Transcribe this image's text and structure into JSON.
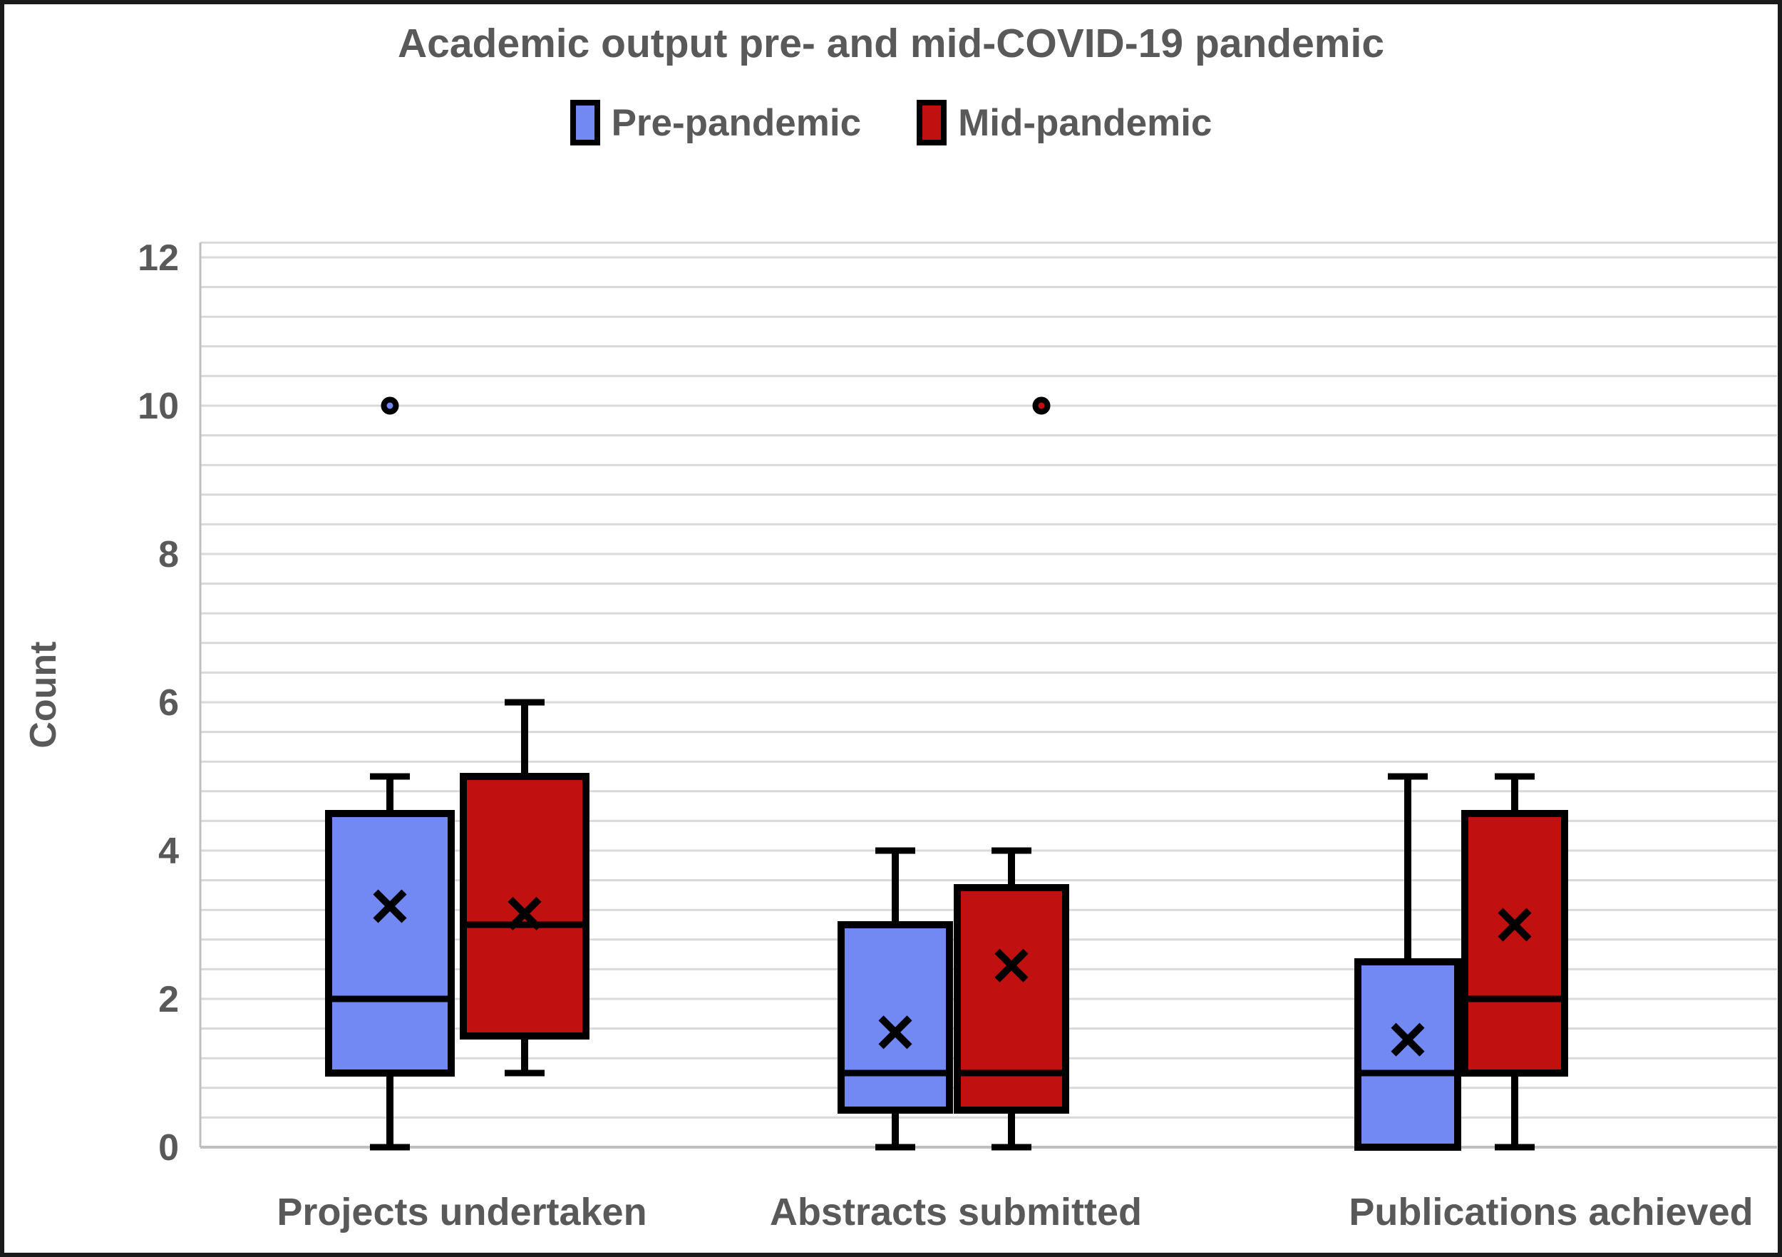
{
  "title": "Academic output pre- and mid-COVID-19 pandemic",
  "legend": [
    {
      "label": "Pre-pandemic",
      "color": "#7289f4"
    },
    {
      "label": "Mid-pandemic",
      "color": "#c11010"
    }
  ],
  "y_axis": {
    "title": "Count",
    "ticks": [
      0,
      2,
      4,
      6,
      8,
      10,
      12
    ],
    "min": 0,
    "max": 12.2,
    "minor_gridline_step": 0.4
  },
  "colors": {
    "text": "#595959",
    "gridline": "#d9d9d9",
    "axis_line": "#bfbfbf",
    "box_outline": "#000000",
    "pre_pandemic_fill": "#7289f4",
    "mid_pandemic_fill": "#c11010"
  },
  "chart_data": {
    "type": "boxplot",
    "title": "Academic output pre- and mid-COVID-19 pandemic",
    "ylabel": "Count",
    "ylim": [
      0,
      12.2
    ],
    "grid": "horizontal-minor",
    "legend_position": "top",
    "categories": [
      "Projects undertaken",
      "Abstracts submitted",
      "Publications achieved"
    ],
    "series": [
      {
        "name": "Pre-pandemic",
        "color": "#7289f4",
        "boxes": [
          {
            "category": "Projects undertaken",
            "whisker_low": 0,
            "q1": 1,
            "median": 2,
            "q3": 4.5,
            "whisker_high": 5,
            "mean": 3.25,
            "outliers": [
              10
            ]
          },
          {
            "category": "Abstracts submitted",
            "whisker_low": 0,
            "q1": 0.5,
            "median": 1,
            "q3": 3,
            "whisker_high": 4,
            "mean": 1.55,
            "outliers": []
          },
          {
            "category": "Publications achieved",
            "whisker_low": 0,
            "q1": 0,
            "median": 1,
            "q3": 2.5,
            "whisker_high": 5,
            "mean": 1.45,
            "outliers": []
          }
        ]
      },
      {
        "name": "Mid-pandemic",
        "color": "#c11010",
        "boxes": [
          {
            "category": "Projects undertaken",
            "whisker_low": 1,
            "q1": 1.5,
            "median": 3,
            "q3": 5,
            "whisker_high": 6,
            "mean": 3.15,
            "outliers": []
          },
          {
            "category": "Abstracts submitted",
            "whisker_low": 0,
            "q1": 0.5,
            "median": 1,
            "q3": 3.5,
            "whisker_high": 4,
            "mean": 2.45,
            "outliers": [
              10
            ]
          },
          {
            "category": "Publications achieved",
            "whisker_low": 0,
            "q1": 1,
            "median": 2,
            "q3": 4.5,
            "whisker_high": 5,
            "mean": 3.0,
            "outliers": []
          }
        ]
      }
    ]
  }
}
